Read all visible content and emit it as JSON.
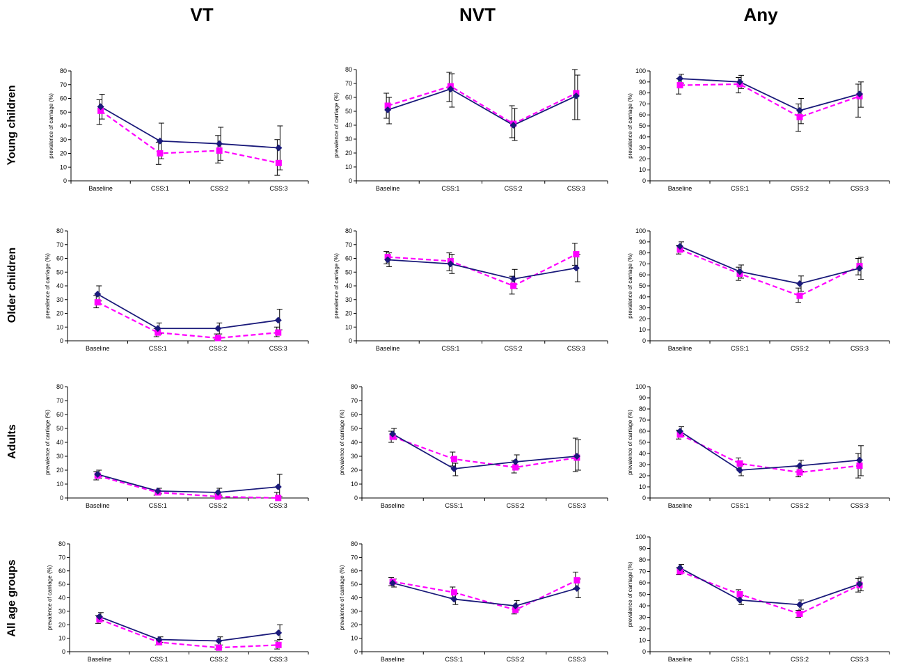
{
  "columns": [
    "VT",
    "NVT",
    "Any"
  ],
  "rows": [
    "Young children",
    "Older children",
    "Adults",
    "All age groups"
  ],
  "colors": {
    "series_a": "#1a1a7a",
    "series_b": "#ff00ff"
  },
  "chart_data": [
    {
      "id": "young-vt",
      "type": "line",
      "categories": [
        "Baseline",
        "CSS:1",
        "CSS:2",
        "CSS:3"
      ],
      "ylabel": "prevalence of carriage (%)",
      "ylim": [
        0,
        80
      ],
      "ytick_step": 10,
      "series": [
        {
          "marker": "diamond",
          "style": "solid",
          "values": [
            54,
            29,
            27,
            24
          ],
          "err_low": [
            45,
            16,
            15,
            8
          ],
          "err_high": [
            63,
            42,
            39,
            40
          ]
        },
        {
          "marker": "square",
          "style": "dashed",
          "values": [
            51,
            20,
            22,
            13
          ],
          "err_low": [
            41,
            12,
            13,
            4
          ],
          "err_high": [
            59,
            28,
            33,
            30
          ]
        }
      ]
    },
    {
      "id": "young-nvt",
      "type": "line",
      "categories": [
        "Baseline",
        "CSS:1",
        "CSS:2",
        "CSS:3"
      ],
      "ylabel": "prevalence of carriage (%)",
      "ylim": [
        0,
        80
      ],
      "ytick_step": 10,
      "series": [
        {
          "marker": "diamond",
          "style": "solid",
          "values": [
            51,
            66,
            40,
            61
          ],
          "err_low": [
            41,
            53,
            29,
            44
          ],
          "err_high": [
            60,
            77,
            52,
            76
          ]
        },
        {
          "marker": "square",
          "style": "dashed",
          "values": [
            54,
            68,
            41,
            63
          ],
          "err_low": [
            45,
            57,
            31,
            44
          ],
          "err_high": [
            63,
            78,
            54,
            80
          ]
        }
      ]
    },
    {
      "id": "young-any",
      "type": "line",
      "categories": [
        "Baseline",
        "CSS:1",
        "CSS:2",
        "CSS:3"
      ],
      "ylabel": "prevalence of carriage (%)",
      "ylim": [
        0,
        100
      ],
      "ytick_step": 10,
      "series": [
        {
          "marker": "diamond",
          "style": "solid",
          "values": [
            93,
            90,
            64,
            79
          ],
          "err_low": [
            89,
            84,
            52,
            67
          ],
          "err_high": [
            97,
            96,
            75,
            90
          ]
        },
        {
          "marker": "square",
          "style": "dashed",
          "values": [
            87,
            88,
            58,
            77
          ],
          "err_low": [
            79,
            80,
            45,
            58
          ],
          "err_high": [
            93,
            94,
            70,
            88
          ]
        }
      ]
    },
    {
      "id": "older-vt",
      "type": "line",
      "categories": [
        "Baseline",
        "CSS:1",
        "CSS:2",
        "CSS:3"
      ],
      "ylabel": "prevalence of carriage (%)",
      "ylim": [
        0,
        80
      ],
      "ytick_step": 10,
      "series": [
        {
          "marker": "diamond",
          "style": "solid",
          "values": [
            34,
            9,
            9,
            15
          ],
          "err_low": [
            29,
            5,
            5,
            8
          ],
          "err_high": [
            40,
            13,
            13,
            23
          ]
        },
        {
          "marker": "square",
          "style": "dashed",
          "values": [
            28,
            6,
            2,
            6
          ],
          "err_low": [
            24,
            3,
            1,
            3
          ],
          "err_high": [
            33,
            9,
            5,
            10
          ]
        }
      ]
    },
    {
      "id": "older-nvt",
      "type": "line",
      "categories": [
        "Baseline",
        "CSS:1",
        "CSS:2",
        "CSS:3"
      ],
      "ylabel": "prevalence of carriage (%)",
      "ylim": [
        0,
        80
      ],
      "ytick_step": 10,
      "series": [
        {
          "marker": "diamond",
          "style": "solid",
          "values": [
            59,
            56,
            45,
            53
          ],
          "err_low": [
            54,
            49,
            38,
            43
          ],
          "err_high": [
            64,
            63,
            52,
            63
          ]
        },
        {
          "marker": "square",
          "style": "dashed",
          "values": [
            61,
            58,
            40,
            63
          ],
          "err_low": [
            56,
            51,
            34,
            55
          ],
          "err_high": [
            65,
            64,
            47,
            71
          ]
        }
      ]
    },
    {
      "id": "older-any",
      "type": "line",
      "categories": [
        "Baseline",
        "CSS:1",
        "CSS:2",
        "CSS:3"
      ],
      "ylabel": "prevalence of carriage (%)",
      "ylim": [
        0,
        100
      ],
      "ytick_step": 10,
      "series": [
        {
          "marker": "diamond",
          "style": "solid",
          "values": [
            86,
            63,
            52,
            66
          ],
          "err_low": [
            82,
            57,
            45,
            56
          ],
          "err_high": [
            90,
            69,
            59,
            76
          ]
        },
        {
          "marker": "square",
          "style": "dashed",
          "values": [
            83,
            61,
            41,
            68
          ],
          "err_low": [
            79,
            55,
            35,
            60
          ],
          "err_high": [
            87,
            67,
            48,
            75
          ]
        }
      ]
    },
    {
      "id": "adults-vt",
      "type": "line",
      "categories": [
        "Baseline",
        "CSS:1",
        "CSS:2",
        "CSS:3"
      ],
      "ylabel": "prevalence of carriage (%)",
      "ylim": [
        0,
        80
      ],
      "ytick_step": 10,
      "series": [
        {
          "marker": "diamond",
          "style": "solid",
          "values": [
            17,
            5,
            4,
            8
          ],
          "err_low": [
            14,
            3,
            2,
            1
          ],
          "err_high": [
            20,
            7,
            7,
            17
          ]
        },
        {
          "marker": "square",
          "style": "dashed",
          "values": [
            16,
            4,
            1,
            0
          ],
          "err_low": [
            13,
            2,
            0,
            0
          ],
          "err_high": [
            19,
            6,
            3,
            4
          ]
        }
      ]
    },
    {
      "id": "adults-nvt",
      "type": "line",
      "categories": [
        "Baseline",
        "CSS:1",
        "CSS:2",
        "CSS:3"
      ],
      "ylabel": "prevalence of carriage (%)",
      "ylim": [
        0,
        80
      ],
      "ytick_step": 10,
      "series": [
        {
          "marker": "diamond",
          "style": "solid",
          "values": [
            46,
            21,
            26,
            30
          ],
          "err_low": [
            42,
            16,
            21,
            20
          ],
          "err_high": [
            50,
            25,
            31,
            42
          ]
        },
        {
          "marker": "square",
          "style": "dashed",
          "values": [
            44,
            28,
            22,
            29
          ],
          "err_low": [
            40,
            23,
            18,
            19
          ],
          "err_high": [
            48,
            33,
            27,
            43
          ]
        }
      ]
    },
    {
      "id": "adults-any",
      "type": "line",
      "categories": [
        "Baseline",
        "CSS:1",
        "CSS:2",
        "CSS:3"
      ],
      "ylabel": "prevalence of carriage (%)",
      "ylim": [
        0,
        100
      ],
      "ytick_step": 10,
      "series": [
        {
          "marker": "diamond",
          "style": "solid",
          "values": [
            60,
            25,
            29,
            34
          ],
          "err_low": [
            56,
            20,
            24,
            20
          ],
          "err_high": [
            64,
            30,
            34,
            47
          ]
        },
        {
          "marker": "square",
          "style": "dashed",
          "values": [
            57,
            31,
            23,
            29
          ],
          "err_low": [
            53,
            26,
            19,
            18
          ],
          "err_high": [
            61,
            36,
            28,
            40
          ]
        }
      ]
    },
    {
      "id": "all-vt",
      "type": "line",
      "categories": [
        "Baseline",
        "CSS:1",
        "CSS:2",
        "CSS:3"
      ],
      "ylabel": "prevalence of carriage (%)",
      "ylim": [
        0,
        80
      ],
      "ytick_step": 10,
      "series": [
        {
          "marker": "diamond",
          "style": "solid",
          "values": [
            26,
            9,
            8,
            14
          ],
          "err_low": [
            23,
            7,
            5,
            9
          ],
          "err_high": [
            29,
            11,
            11,
            20
          ]
        },
        {
          "marker": "square",
          "style": "dashed",
          "values": [
            24,
            7,
            3,
            5
          ],
          "err_low": [
            21,
            5,
            2,
            2
          ],
          "err_high": [
            27,
            10,
            5,
            8
          ]
        }
      ]
    },
    {
      "id": "all-nvt",
      "type": "line",
      "categories": [
        "Baseline",
        "CSS:1",
        "CSS:2",
        "CSS:3"
      ],
      "ylabel": "prevalence of carriage (%)",
      "ylim": [
        0,
        80
      ],
      "ytick_step": 10,
      "series": [
        {
          "marker": "diamond",
          "style": "solid",
          "values": [
            51,
            39,
            34,
            47
          ],
          "err_low": [
            48,
            35,
            31,
            40
          ],
          "err_high": [
            54,
            43,
            38,
            54
          ]
        },
        {
          "marker": "square",
          "style": "dashed",
          "values": [
            52,
            44,
            31,
            53
          ],
          "err_low": [
            49,
            40,
            28,
            47
          ],
          "err_high": [
            55,
            48,
            34,
            59
          ]
        }
      ]
    },
    {
      "id": "all-any",
      "type": "line",
      "categories": [
        "Baseline",
        "CSS:1",
        "CSS:2",
        "CSS:3"
      ],
      "ylabel": "prevalence of carriage (%)",
      "ylim": [
        0,
        100
      ],
      "ytick_step": 10,
      "series": [
        {
          "marker": "diamond",
          "style": "solid",
          "values": [
            73,
            45,
            41,
            59
          ],
          "err_low": [
            70,
            41,
            37,
            53
          ],
          "err_high": [
            76,
            49,
            45,
            65
          ]
        },
        {
          "marker": "square",
          "style": "dashed",
          "values": [
            70,
            50,
            33,
            58
          ],
          "err_low": [
            67,
            46,
            30,
            52
          ],
          "err_high": [
            73,
            54,
            36,
            64
          ]
        }
      ]
    }
  ]
}
